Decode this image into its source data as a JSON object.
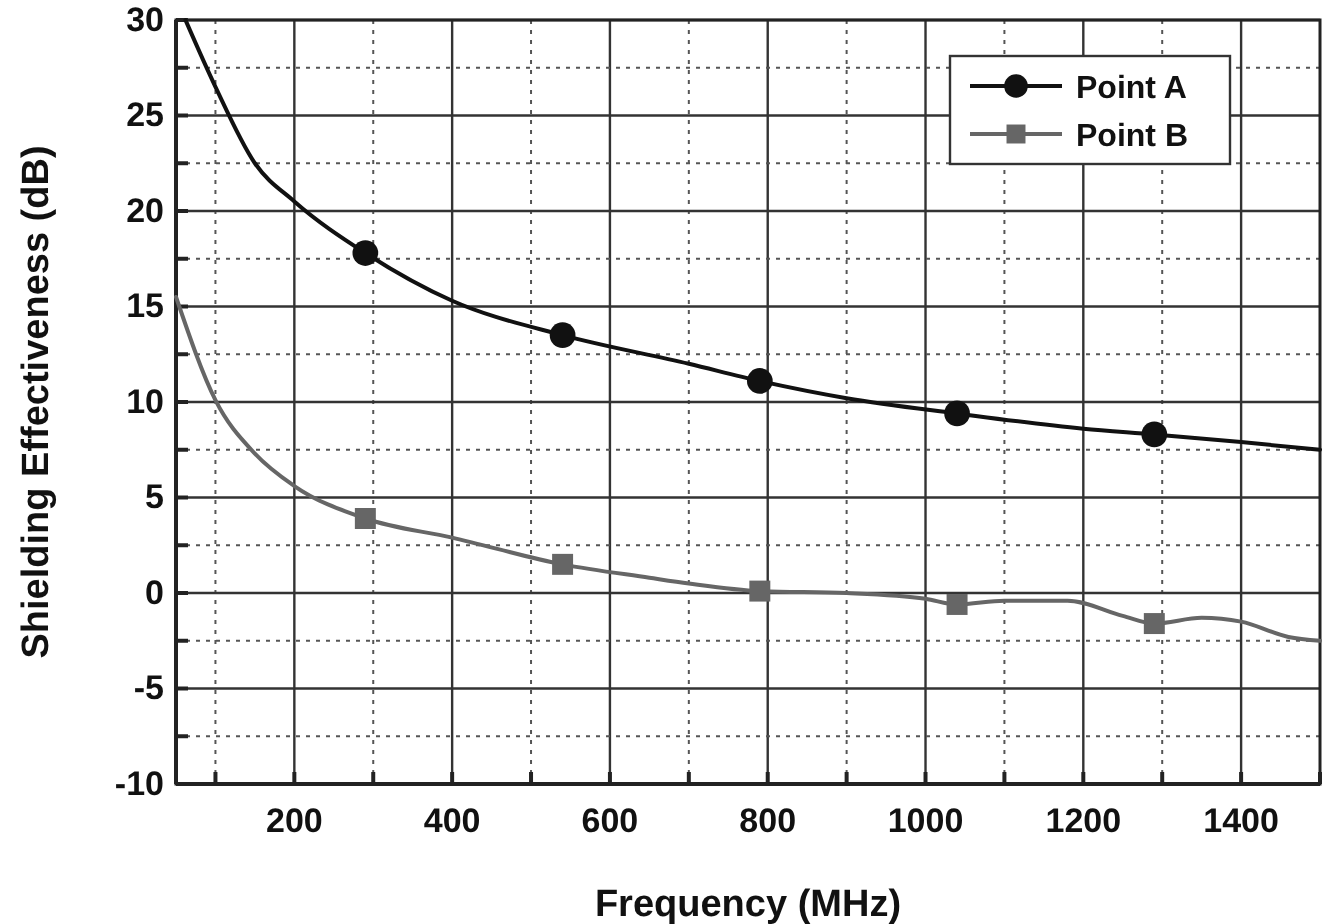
{
  "chart_data": {
    "type": "line",
    "xlabel": "Frequency (MHz)",
    "ylabel": "Shielding Effectiveness (dB)",
    "xlim": [
      50,
      1500
    ],
    "ylim": [
      -10,
      30
    ],
    "xticks": [
      {
        "value": 100,
        "label": null
      },
      200,
      {
        "value": 300,
        "label": null
      },
      400,
      {
        "value": 500,
        "label": null
      },
      600,
      {
        "value": 700,
        "label": null
      },
      800,
      {
        "value": 900,
        "label": null
      },
      1000,
      {
        "value": 1100,
        "label": null
      },
      1200,
      {
        "value": 1300,
        "label": null
      },
      1400,
      {
        "value": 1500,
        "label": null
      }
    ],
    "yticks": [
      -10,
      {
        "value": -7.5,
        "label": null
      },
      -5,
      {
        "value": -2.5,
        "label": null
      },
      0,
      {
        "value": 2.5,
        "label": null
      },
      5,
      {
        "value": 7.5,
        "label": null
      },
      10,
      {
        "value": 12.5,
        "label": null
      },
      15,
      {
        "value": 17.5,
        "label": null
      },
      20,
      {
        "value": 22.5,
        "label": null
      },
      25,
      {
        "value": 27.5,
        "label": null
      },
      30
    ],
    "grid": true,
    "legend": "top right",
    "series": [
      {
        "marker": "none",
        "color": "#111111",
        "x": [
          62,
          100,
          150,
          200,
          290,
          400,
          540,
          700,
          790,
          900,
          1040,
          1200,
          1290,
          1400,
          1500
        ],
        "values": [
          30,
          26.5,
          22.5,
          20.5,
          17.8,
          15.3,
          13.5,
          12,
          11.1,
          10.2,
          9.4,
          8.6,
          8.3,
          7.9,
          7.5
        ]
      },
      {
        "marker": "none",
        "color": "#666666",
        "x": [
          50,
          100,
          150,
          200,
          290,
          400,
          540,
          650,
          700,
          790,
          900,
          1000,
          1040,
          1100,
          1180,
          1250,
          1290,
          1350,
          1400,
          1460,
          1500
        ],
        "values": [
          15.5,
          10.1,
          7.3,
          5.6,
          3.9,
          2.9,
          1.5,
          0.8,
          0.5,
          0.1,
          0,
          -0.3,
          -0.6,
          -0.4,
          -0.4,
          -1.2,
          -1.6,
          -1.3,
          -1.5,
          -2.3,
          -2.5
        ]
      },
      {
        "type": "scatter",
        "name": "Point A",
        "marker": "circle",
        "color": "#111111",
        "x": [
          290,
          540,
          790,
          1040,
          1290
        ],
        "values": [
          17.8,
          13.5,
          11.1,
          9.4,
          8.3
        ]
      },
      {
        "type": "scatter",
        "name": "Point B",
        "marker": "square",
        "color": "#666666",
        "x": [
          290,
          540,
          790,
          1040,
          1290
        ],
        "values": [
          3.9,
          1.5,
          0.1,
          -0.6,
          -1.6
        ]
      }
    ]
  }
}
